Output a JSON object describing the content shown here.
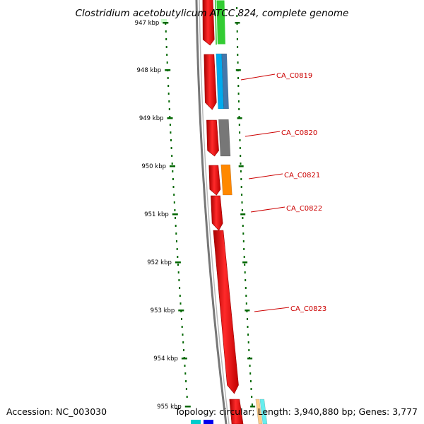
{
  "title": "Clostridium acetobutylicum ATCC 824, complete genome",
  "accession_text": "Accession: NC_003030",
  "summary_text": "Topology: circular; Length: 3,940,880 bp; Genes: 3,777",
  "scale_ticks": [
    "947 kbp",
    "948 kbp",
    "949 kbp",
    "950 kbp",
    "951 kbp",
    "952 kbp",
    "953 kbp",
    "954 kbp",
    "955 kbp"
  ],
  "gene_labels": [
    "CA_C0819",
    "CA_C0820",
    "CA_C0821",
    "CA_C0822",
    "CA_C0823"
  ],
  "colors": {
    "backbone": "#777777",
    "gene_forward": "#ee0000",
    "tick_mark": "#006600",
    "label_text": "#cc0000",
    "cog_green": "#33cc33",
    "cog_cyan": "#00aaee",
    "cog_steel": "#4477aa",
    "cog_grey": "#666666",
    "cog_orange": "#ff8800"
  }
}
